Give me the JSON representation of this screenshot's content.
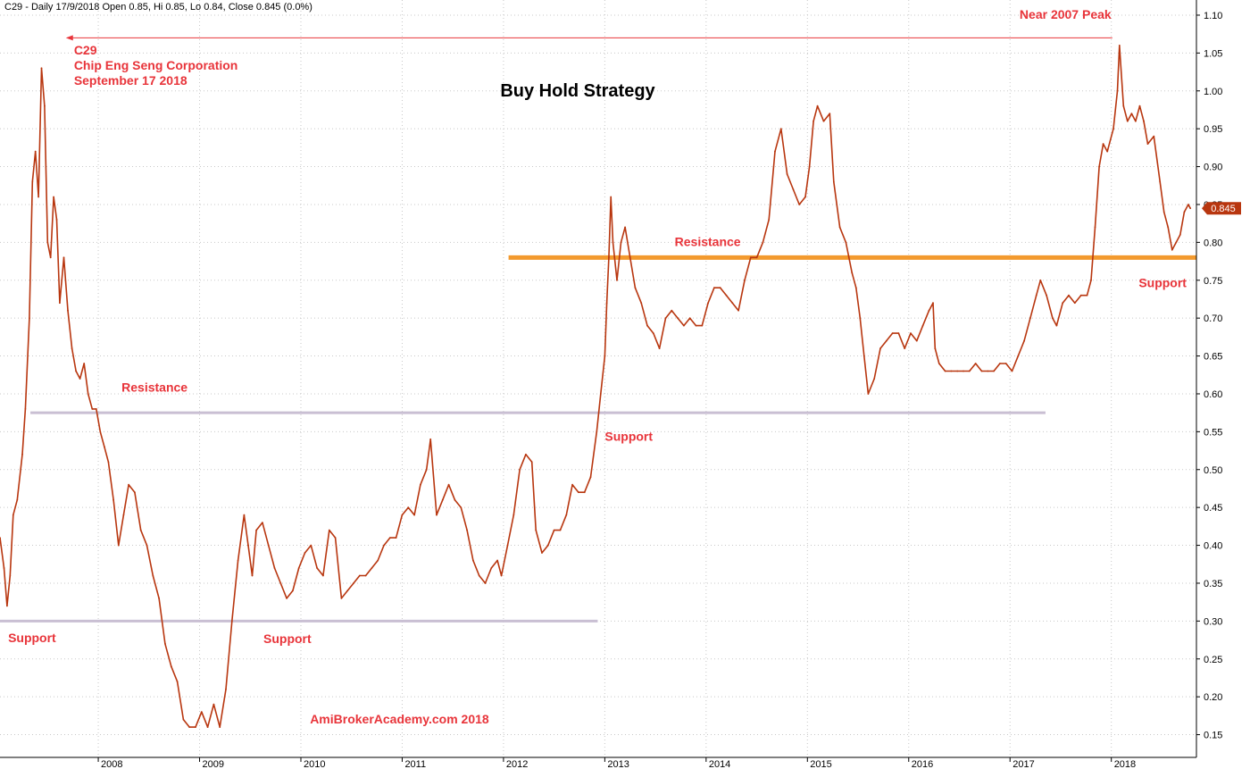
{
  "header": {
    "info": "C29 - Daily 17/9/2018 Open 0.85, Hi 0.85, Lo 0.84, Close 0.845 (0.0%)"
  },
  "colors": {
    "price": "#b8360f",
    "annotation": "#e8343a",
    "support_line": "#c9bfd3",
    "orange_line": "#f39a2e",
    "grid": "#c8c8c8",
    "badge": "#b8360f"
  },
  "chart_data": {
    "type": "line",
    "title": "Buy Hold Strategy",
    "xlabel": "",
    "ylabel": "",
    "ylim": [
      0.12,
      1.12
    ],
    "y_ticks": [
      "1.10",
      "1.05",
      "1.00",
      "0.95",
      "0.90",
      "0.85",
      "0.80",
      "0.75",
      "0.70",
      "0.65",
      "0.60",
      "0.55",
      "0.50",
      "0.45",
      "0.40",
      "0.35",
      "0.30",
      "0.25",
      "0.20",
      "0.15"
    ],
    "x_ticks": [
      {
        "label": "2008",
        "t": 2008.0
      },
      {
        "label": "2009",
        "t": 2009.0
      },
      {
        "label": "2010",
        "t": 2010.0
      },
      {
        "label": "2011",
        "t": 2011.0
      },
      {
        "label": "2012",
        "t": 2012.0
      },
      {
        "label": "2013",
        "t": 2013.0
      },
      {
        "label": "2014",
        "t": 2014.0
      },
      {
        "label": "2015",
        "t": 2015.0
      },
      {
        "label": "2016",
        "t": 2016.0
      },
      {
        "label": "2017",
        "t": 2017.0
      },
      {
        "label": "2018",
        "t": 2018.0
      }
    ],
    "xlim": [
      2007.03,
      2018.84
    ],
    "grid": true,
    "series": [
      {
        "values": [
          [
            2007.03,
            0.41
          ],
          [
            2007.07,
            0.37
          ],
          [
            2007.1,
            0.32
          ],
          [
            2007.13,
            0.36
          ],
          [
            2007.16,
            0.44
          ],
          [
            2007.2,
            0.46
          ],
          [
            2007.25,
            0.52
          ],
          [
            2007.28,
            0.58
          ],
          [
            2007.32,
            0.7
          ],
          [
            2007.35,
            0.88
          ],
          [
            2007.38,
            0.92
          ],
          [
            2007.41,
            0.86
          ],
          [
            2007.44,
            1.03
          ],
          [
            2007.47,
            0.98
          ],
          [
            2007.5,
            0.8
          ],
          [
            2007.53,
            0.78
          ],
          [
            2007.56,
            0.86
          ],
          [
            2007.59,
            0.83
          ],
          [
            2007.62,
            0.72
          ],
          [
            2007.66,
            0.78
          ],
          [
            2007.7,
            0.71
          ],
          [
            2007.74,
            0.66
          ],
          [
            2007.78,
            0.63
          ],
          [
            2007.82,
            0.62
          ],
          [
            2007.86,
            0.64
          ],
          [
            2007.9,
            0.6
          ],
          [
            2007.94,
            0.58
          ],
          [
            2007.98,
            0.58
          ],
          [
            2008.02,
            0.55
          ],
          [
            2008.06,
            0.53
          ],
          [
            2008.1,
            0.51
          ],
          [
            2008.15,
            0.46
          ],
          [
            2008.2,
            0.4
          ],
          [
            2008.25,
            0.44
          ],
          [
            2008.3,
            0.48
          ],
          [
            2008.36,
            0.47
          ],
          [
            2008.42,
            0.42
          ],
          [
            2008.48,
            0.4
          ],
          [
            2008.54,
            0.36
          ],
          [
            2008.6,
            0.33
          ],
          [
            2008.66,
            0.27
          ],
          [
            2008.72,
            0.24
          ],
          [
            2008.78,
            0.22
          ],
          [
            2008.84,
            0.17
          ],
          [
            2008.9,
            0.16
          ],
          [
            2008.96,
            0.16
          ],
          [
            2009.02,
            0.18
          ],
          [
            2009.08,
            0.16
          ],
          [
            2009.14,
            0.19
          ],
          [
            2009.2,
            0.16
          ],
          [
            2009.26,
            0.21
          ],
          [
            2009.32,
            0.3
          ],
          [
            2009.38,
            0.38
          ],
          [
            2009.44,
            0.44
          ],
          [
            2009.48,
            0.4
          ],
          [
            2009.52,
            0.36
          ],
          [
            2009.56,
            0.42
          ],
          [
            2009.62,
            0.43
          ],
          [
            2009.68,
            0.4
          ],
          [
            2009.74,
            0.37
          ],
          [
            2009.8,
            0.35
          ],
          [
            2009.86,
            0.33
          ],
          [
            2009.92,
            0.34
          ],
          [
            2009.98,
            0.37
          ],
          [
            2010.04,
            0.39
          ],
          [
            2010.1,
            0.4
          ],
          [
            2010.16,
            0.37
          ],
          [
            2010.22,
            0.36
          ],
          [
            2010.28,
            0.42
          ],
          [
            2010.34,
            0.41
          ],
          [
            2010.4,
            0.33
          ],
          [
            2010.46,
            0.34
          ],
          [
            2010.52,
            0.35
          ],
          [
            2010.58,
            0.36
          ],
          [
            2010.64,
            0.36
          ],
          [
            2010.7,
            0.37
          ],
          [
            2010.76,
            0.38
          ],
          [
            2010.82,
            0.4
          ],
          [
            2010.88,
            0.41
          ],
          [
            2010.94,
            0.41
          ],
          [
            2011.0,
            0.44
          ],
          [
            2011.06,
            0.45
          ],
          [
            2011.12,
            0.44
          ],
          [
            2011.18,
            0.48
          ],
          [
            2011.24,
            0.5
          ],
          [
            2011.28,
            0.54
          ],
          [
            2011.34,
            0.44
          ],
          [
            2011.4,
            0.46
          ],
          [
            2011.46,
            0.48
          ],
          [
            2011.52,
            0.46
          ],
          [
            2011.58,
            0.45
          ],
          [
            2011.64,
            0.42
          ],
          [
            2011.7,
            0.38
          ],
          [
            2011.76,
            0.36
          ],
          [
            2011.82,
            0.35
          ],
          [
            2011.88,
            0.37
          ],
          [
            2011.94,
            0.38
          ],
          [
            2011.98,
            0.36
          ],
          [
            2012.04,
            0.4
          ],
          [
            2012.1,
            0.44
          ],
          [
            2012.16,
            0.5
          ],
          [
            2012.22,
            0.52
          ],
          [
            2012.28,
            0.51
          ],
          [
            2012.32,
            0.42
          ],
          [
            2012.38,
            0.39
          ],
          [
            2012.44,
            0.4
          ],
          [
            2012.5,
            0.42
          ],
          [
            2012.56,
            0.42
          ],
          [
            2012.62,
            0.44
          ],
          [
            2012.68,
            0.48
          ],
          [
            2012.74,
            0.47
          ],
          [
            2012.8,
            0.47
          ],
          [
            2012.86,
            0.49
          ],
          [
            2012.92,
            0.55
          ],
          [
            2012.96,
            0.6
          ],
          [
            2013.0,
            0.65
          ],
          [
            2013.02,
            0.72
          ],
          [
            2013.04,
            0.78
          ],
          [
            2013.06,
            0.86
          ],
          [
            2013.08,
            0.8
          ],
          [
            2013.12,
            0.75
          ],
          [
            2013.16,
            0.8
          ],
          [
            2013.2,
            0.82
          ],
          [
            2013.25,
            0.78
          ],
          [
            2013.3,
            0.74
          ],
          [
            2013.36,
            0.72
          ],
          [
            2013.42,
            0.69
          ],
          [
            2013.48,
            0.68
          ],
          [
            2013.54,
            0.66
          ],
          [
            2013.6,
            0.7
          ],
          [
            2013.66,
            0.71
          ],
          [
            2013.72,
            0.7
          ],
          [
            2013.78,
            0.69
          ],
          [
            2013.84,
            0.7
          ],
          [
            2013.9,
            0.69
          ],
          [
            2013.96,
            0.69
          ],
          [
            2014.02,
            0.72
          ],
          [
            2014.08,
            0.74
          ],
          [
            2014.14,
            0.74
          ],
          [
            2014.2,
            0.73
          ],
          [
            2014.26,
            0.72
          ],
          [
            2014.32,
            0.71
          ],
          [
            2014.38,
            0.75
          ],
          [
            2014.44,
            0.78
          ],
          [
            2014.5,
            0.78
          ],
          [
            2014.56,
            0.8
          ],
          [
            2014.62,
            0.83
          ],
          [
            2014.68,
            0.92
          ],
          [
            2014.74,
            0.95
          ],
          [
            2014.8,
            0.89
          ],
          [
            2014.86,
            0.87
          ],
          [
            2014.92,
            0.85
          ],
          [
            2014.98,
            0.86
          ],
          [
            2015.02,
            0.9
          ],
          [
            2015.06,
            0.96
          ],
          [
            2015.1,
            0.98
          ],
          [
            2015.16,
            0.96
          ],
          [
            2015.22,
            0.97
          ],
          [
            2015.26,
            0.88
          ],
          [
            2015.32,
            0.82
          ],
          [
            2015.38,
            0.8
          ],
          [
            2015.44,
            0.76
          ],
          [
            2015.48,
            0.74
          ],
          [
            2015.52,
            0.7
          ],
          [
            2015.56,
            0.65
          ],
          [
            2015.6,
            0.6
          ],
          [
            2015.66,
            0.62
          ],
          [
            2015.72,
            0.66
          ],
          [
            2015.78,
            0.67
          ],
          [
            2015.84,
            0.68
          ],
          [
            2015.9,
            0.68
          ],
          [
            2015.96,
            0.66
          ],
          [
            2016.02,
            0.68
          ],
          [
            2016.08,
            0.67
          ],
          [
            2016.14,
            0.69
          ],
          [
            2016.2,
            0.71
          ],
          [
            2016.24,
            0.72
          ],
          [
            2016.26,
            0.66
          ],
          [
            2016.3,
            0.64
          ],
          [
            2016.36,
            0.63
          ],
          [
            2016.42,
            0.63
          ],
          [
            2016.48,
            0.63
          ],
          [
            2016.54,
            0.63
          ],
          [
            2016.6,
            0.63
          ],
          [
            2016.66,
            0.64
          ],
          [
            2016.72,
            0.63
          ],
          [
            2016.78,
            0.63
          ],
          [
            2016.84,
            0.63
          ],
          [
            2016.9,
            0.64
          ],
          [
            2016.96,
            0.64
          ],
          [
            2017.02,
            0.63
          ],
          [
            2017.08,
            0.65
          ],
          [
            2017.14,
            0.67
          ],
          [
            2017.2,
            0.7
          ],
          [
            2017.26,
            0.73
          ],
          [
            2017.3,
            0.75
          ],
          [
            2017.36,
            0.73
          ],
          [
            2017.42,
            0.7
          ],
          [
            2017.46,
            0.69
          ],
          [
            2017.52,
            0.72
          ],
          [
            2017.58,
            0.73
          ],
          [
            2017.64,
            0.72
          ],
          [
            2017.7,
            0.73
          ],
          [
            2017.76,
            0.73
          ],
          [
            2017.8,
            0.75
          ],
          [
            2017.84,
            0.82
          ],
          [
            2017.88,
            0.9
          ],
          [
            2017.92,
            0.93
          ],
          [
            2017.96,
            0.92
          ],
          [
            2018.02,
            0.95
          ],
          [
            2018.06,
            1.0
          ],
          [
            2018.08,
            1.06
          ],
          [
            2018.12,
            0.98
          ],
          [
            2018.16,
            0.96
          ],
          [
            2018.2,
            0.97
          ],
          [
            2018.24,
            0.96
          ],
          [
            2018.28,
            0.98
          ],
          [
            2018.32,
            0.96
          ],
          [
            2018.36,
            0.93
          ],
          [
            2018.42,
            0.94
          ],
          [
            2018.48,
            0.88
          ],
          [
            2018.52,
            0.84
          ],
          [
            2018.56,
            0.82
          ],
          [
            2018.6,
            0.79
          ],
          [
            2018.64,
            0.8
          ],
          [
            2018.68,
            0.81
          ],
          [
            2018.72,
            0.84
          ],
          [
            2018.76,
            0.85
          ],
          [
            2018.78,
            0.845
          ]
        ]
      }
    ],
    "last_price": "0.845",
    "levels": [
      {
        "name": "support-line-low",
        "value": 0.3,
        "t_start": 2007.03,
        "t_end": 2012.93,
        "color": "support"
      },
      {
        "name": "support-line-mid",
        "value": 0.575,
        "t_start": 2007.33,
        "t_end": 2017.35,
        "color": "support"
      },
      {
        "name": "resistance-line-orange",
        "value": 0.78,
        "t_start": 2012.05,
        "t_end": 2018.84,
        "color": "orange"
      }
    ],
    "arrow": {
      "value": 1.07,
      "t_from": 2018.01,
      "t_to": 2007.68
    },
    "annotations": [
      {
        "name": "annotation-near-2007-peak",
        "text": "Near 2007 Peak",
        "anchor": "end",
        "t": 2018.0,
        "v": 1.095
      },
      {
        "name": "annotation-symbol",
        "text": "C29",
        "anchor": "start",
        "t": 2007.76,
        "v": 1.048
      },
      {
        "name": "annotation-company",
        "text": "Chip Eng Seng Corporation",
        "anchor": "start",
        "t": 2007.76,
        "v": 1.028
      },
      {
        "name": "annotation-date",
        "text": "September 17 2018",
        "anchor": "start",
        "t": 2007.76,
        "v": 1.008
      },
      {
        "name": "annotation-resistance-left",
        "text": "Resistance",
        "anchor": "start",
        "t": 2008.23,
        "v": 0.603
      },
      {
        "name": "annotation-support-left",
        "text": "Support",
        "anchor": "start",
        "t": 2007.11,
        "v": 0.272
      },
      {
        "name": "annotation-support-mid",
        "text": "Support",
        "anchor": "start",
        "t": 2009.63,
        "v": 0.271
      },
      {
        "name": "annotation-support-2013",
        "text": "Support",
        "anchor": "start",
        "t": 2013.0,
        "v": 0.538
      },
      {
        "name": "annotation-resistance-right",
        "text": "Resistance",
        "anchor": "start",
        "t": 2013.69,
        "v": 0.795
      },
      {
        "name": "annotation-support-right",
        "text": "Support",
        "anchor": "start",
        "t": 2018.27,
        "v": 0.741
      },
      {
        "name": "annotation-footer",
        "text": "AmiBrokerAcademy.com  2018",
        "anchor": "start",
        "t": 2010.09,
        "v": 0.165
      }
    ]
  }
}
